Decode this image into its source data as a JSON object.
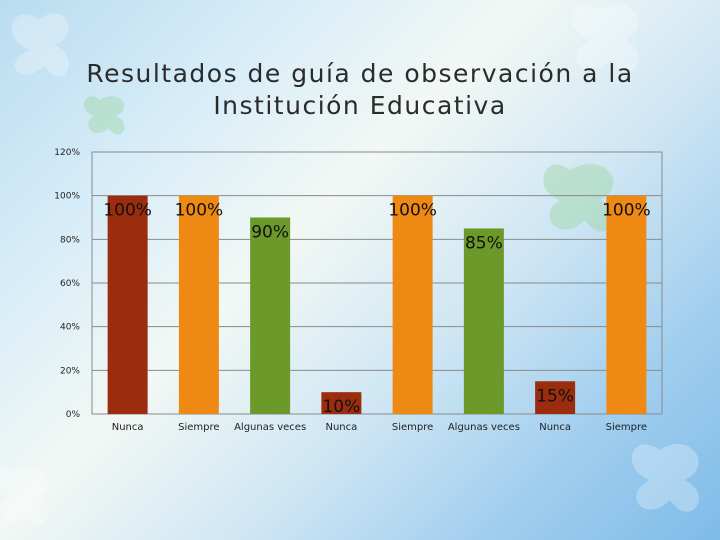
{
  "title": "Resultados de guía de observación a la Institución Educativa",
  "colors": {
    "nunca": "#9b2d0e",
    "siempre": "#ee8a13",
    "algunas": "#6b9a2a"
  },
  "chart_data": {
    "type": "bar",
    "title": "Resultados de guía de observación a la Institución Educativa",
    "yticks": [
      "0%",
      "20%",
      "40%",
      "60%",
      "80%",
      "100%",
      "120%"
    ],
    "ylim": [
      0,
      120
    ],
    "grid": true,
    "bars": [
      {
        "category": "Nunca",
        "value": 100,
        "label": "100%",
        "color": "#9b2d0e"
      },
      {
        "category": "Siempre",
        "value": 100,
        "label": "100%",
        "color": "#ee8a13"
      },
      {
        "category": "Algunas veces",
        "value": 90,
        "label": "90%",
        "color": "#6b9a2a"
      },
      {
        "category": "Nunca",
        "value": 10,
        "label": "10%",
        "color": "#9b2d0e"
      },
      {
        "category": "Siempre",
        "value": 100,
        "label": "100%",
        "color": "#ee8a13"
      },
      {
        "category": "Algunas veces",
        "value": 85,
        "label": "85%",
        "color": "#6b9a2a"
      },
      {
        "category": "Nunca",
        "value": 15,
        "label": "15%",
        "color": "#9b2d0e"
      },
      {
        "category": "Siempre",
        "value": 100,
        "label": "100%",
        "color": "#ee8a13"
      }
    ],
    "bottom_labels": [
      "Nunca",
      "Siempre",
      "Algunas veces",
      "Nunca",
      "Siempre",
      "Algunas veces",
      "Nunca",
      "Siempre"
    ]
  }
}
